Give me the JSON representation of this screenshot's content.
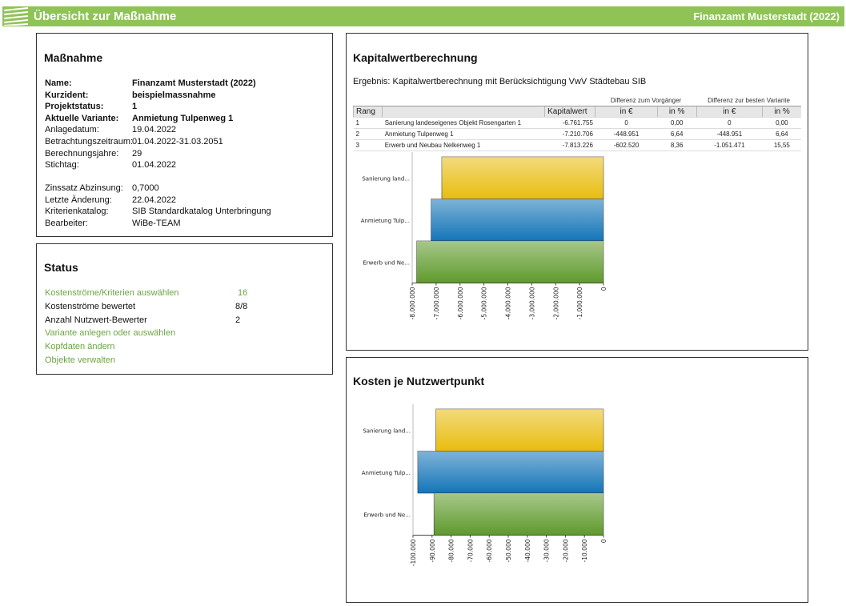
{
  "header": {
    "title": "Übersicht zur Maßnahme",
    "right": "Finanzamt Musterstadt (2022)"
  },
  "massnahme": {
    "title": "Maßnahme",
    "groups": [
      [
        [
          "Name:",
          "Finanzamt Musterstadt (2022)"
        ],
        [
          "Kurzident:",
          "beispielmassnahme"
        ],
        [
          "Projektstatus:",
          "1"
        ],
        [
          "Aktuelle Variante:",
          "Anmietung Tulpenweg 1"
        ],
        [
          "Anlagedatum:",
          "19.04.2022"
        ],
        [
          "Betrachtungszeitraum:",
          "01.04.2022-31.03.2051"
        ],
        [
          "Berechnungsjahre:",
          "29"
        ],
        [
          "Stichtag:",
          "01.04.2022"
        ]
      ],
      [
        [
          "Zinssatz Abzinsung:",
          "0,7000"
        ],
        [
          "Letzte Änderung:",
          "22.04.2022"
        ],
        [
          "Kriterienkatalog:",
          "SIB Standardkatalog Unterbringung"
        ],
        [
          "Bearbeiter:",
          "WiBe-TEAM"
        ]
      ]
    ]
  },
  "status": {
    "title": "Status",
    "items": [
      {
        "label": "Kostenströme/Kriterien auswählen",
        "value": "16",
        "link": true
      },
      {
        "label": "Kostenströme bewertet",
        "value": "8/8",
        "link": false
      },
      {
        "label": "Anzahl Nutzwert-Bewerter",
        "value": "2",
        "link": false
      },
      {
        "label": "Variante anlegen oder auswählen",
        "link": true
      },
      {
        "label": "Kopfdaten ändern",
        "link": true
      },
      {
        "label": "Objekte verwalten",
        "link": true
      }
    ]
  },
  "kapitalwert": {
    "title": "Kapitalwertberechnung",
    "subtitle": "Ergebnis: Kapitalwertberechnung mit Berücksichtigung VwV Städtebau SIB",
    "table": {
      "groups": [
        "Differenz zum Vorgänger",
        "Differenz zur besten Variante"
      ],
      "columns": [
        "Rang",
        "Kapitalwert",
        "in €",
        "in %",
        "in €",
        "in %"
      ],
      "rows": [
        [
          "1",
          "Sanierung landeseigenes Objekt Rosengarten 1",
          "-6.761.755",
          "0",
          "0,00",
          "0",
          "0,00"
        ],
        [
          "2",
          "Anmietung Tulpenweg 1",
          "-7.210.706",
          "-448.951",
          "6,64",
          "-448.951",
          "6,64"
        ],
        [
          "3",
          "Erwerb und Neubau Nelkenweg 1",
          "-7.813.226",
          "-602.520",
          "8,36",
          "-1.051.471",
          "15,55"
        ]
      ]
    },
    "chart": {
      "type": "bar",
      "categories": [
        "Sanierung land...",
        "Anmietung Tulp...",
        "Erwerb und Ne..."
      ],
      "values": [
        -6761755,
        -7210706,
        -7813226
      ],
      "colors": [
        "#e8bd10",
        "#1475b8",
        "#5f9a2c"
      ],
      "xlim": [
        -8000000,
        0
      ],
      "xticks": [
        {
          "value": -8000000,
          "label": "-8.000.000"
        },
        {
          "value": -7000000,
          "label": "-7.000.000"
        },
        {
          "value": -6000000,
          "label": "-6.000.000"
        },
        {
          "value": -5000000,
          "label": "-5.000.000"
        },
        {
          "value": -4000000,
          "label": "-4.000.000"
        },
        {
          "value": -3000000,
          "label": "-3.000.000"
        },
        {
          "value": -2000000,
          "label": "-2.000.000"
        },
        {
          "value": -1000000,
          "label": "-1.000.000"
        },
        0
      ]
    }
  },
  "kosten": {
    "title": "Kosten je Nutzwertpunkt",
    "chart": {
      "type": "bar",
      "categories": [
        "Sanierung land...",
        "Anmietung Tulp...",
        "Erwerb und Ne..."
      ],
      "values": [
        -88000,
        -97500,
        -89000
      ],
      "colors": [
        "#e8bd10",
        "#1475b8",
        "#5f9a2c"
      ],
      "xlim": [
        -100000,
        0
      ],
      "xticks": [
        {
          "value": -100000,
          "label": "-100.000"
        },
        {
          "value": -90000,
          "label": "-90.000"
        },
        {
          "value": -80000,
          "label": "-80.000"
        },
        {
          "value": -70000,
          "label": "-70.000"
        },
        {
          "value": -60000,
          "label": "-60.000"
        },
        {
          "value": -50000,
          "label": "-50.000"
        },
        {
          "value": -40000,
          "label": "-40.000"
        },
        {
          "value": -30000,
          "label": "-30.000"
        },
        {
          "value": -20000,
          "label": "-20.000"
        },
        {
          "value": -10000,
          "label": "-10.000"
        },
        0
      ]
    }
  }
}
